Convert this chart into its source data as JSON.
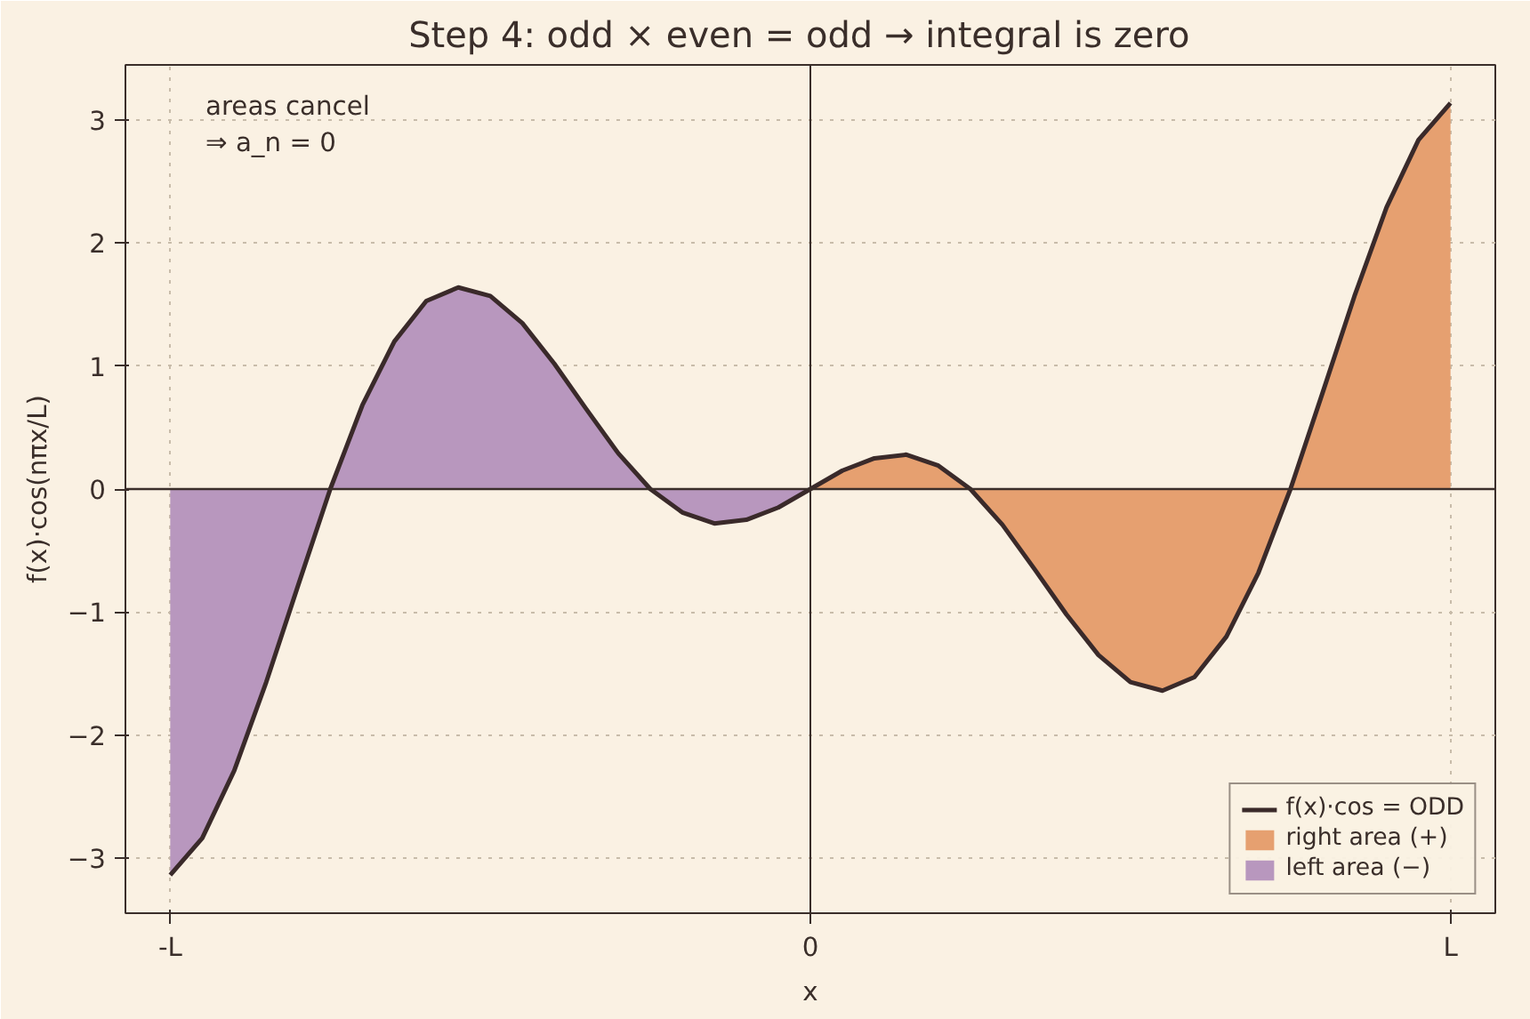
{
  "chart_data": {
    "type": "line",
    "title": "Step 4: odd × even = odd  →  integral is zero",
    "xlabel": "x",
    "ylabel": "f(x)·cos(nπx/L)",
    "categories": [
      "-L",
      null,
      null,
      null,
      null,
      null,
      null,
      null,
      null,
      null,
      null,
      null,
      null,
      null,
      null,
      null,
      null,
      null,
      null,
      null,
      "0",
      null,
      null,
      null,
      null,
      null,
      null,
      null,
      null,
      null,
      null,
      null,
      null,
      null,
      null,
      null,
      null,
      null,
      null,
      null,
      "L"
    ],
    "ylim": [
      -3.45,
      3.45
    ],
    "yticks": [
      {
        "value": -3,
        "label": "−3"
      },
      {
        "value": -2,
        "label": "−2"
      },
      {
        "value": -1,
        "label": "−1"
      },
      0,
      1,
      2,
      3
    ],
    "grid": true,
    "legend": "bottom right",
    "line_style": "solid",
    "annotations": [
      "areas cancel\n⇒ a_n = 0"
    ],
    "ref_lines": [
      {
        "axis": "x",
        "value": "0",
        "color": "#3a2e2a"
      },
      {
        "axis": "y",
        "value": 0,
        "color": "#3a2e2a"
      }
    ],
    "series": [
      {
        "name": "right area (+)",
        "type": "area",
        "color": "#e6a070",
        "values": [
          null,
          null,
          null,
          null,
          null,
          null,
          null,
          null,
          null,
          null,
          null,
          null,
          null,
          null,
          null,
          null,
          null,
          null,
          null,
          null,
          0,
          0.15,
          0.25,
          0.28,
          0.19,
          0,
          -0.29,
          -0.65,
          -1.02,
          -1.35,
          -1.57,
          -1.64,
          -1.53,
          -1.2,
          -0.68,
          0,
          0.78,
          1.57,
          2.29,
          2.84,
          3.14
        ]
      },
      {
        "name": "left area (−)",
        "type": "area",
        "color": "#b897be",
        "values": [
          -3.14,
          -2.84,
          -2.29,
          -1.57,
          -0.78,
          0,
          0.68,
          1.2,
          1.53,
          1.64,
          1.57,
          1.35,
          1.02,
          0.65,
          0.29,
          0,
          -0.19,
          -0.28,
          -0.25,
          -0.15,
          0,
          null,
          null,
          null,
          null,
          null,
          null,
          null,
          null,
          null,
          null,
          null,
          null,
          null,
          null,
          null,
          null,
          null,
          null,
          null,
          null
        ]
      },
      {
        "name": "f(x)·cos = ODD",
        "color": "#3a2a2a",
        "values": [
          -3.14,
          -2.84,
          -2.29,
          -1.57,
          -0.78,
          0,
          0.68,
          1.2,
          1.53,
          1.64,
          1.57,
          1.35,
          1.02,
          0.65,
          0.29,
          0,
          -0.19,
          -0.28,
          -0.25,
          -0.15,
          0,
          0.15,
          0.25,
          0.28,
          0.19,
          0,
          -0.29,
          -0.65,
          -1.02,
          -1.35,
          -1.57,
          -1.64,
          -1.53,
          -1.2,
          -0.68,
          0,
          0.78,
          1.57,
          2.29,
          2.84,
          3.14
        ]
      }
    ]
  }
}
